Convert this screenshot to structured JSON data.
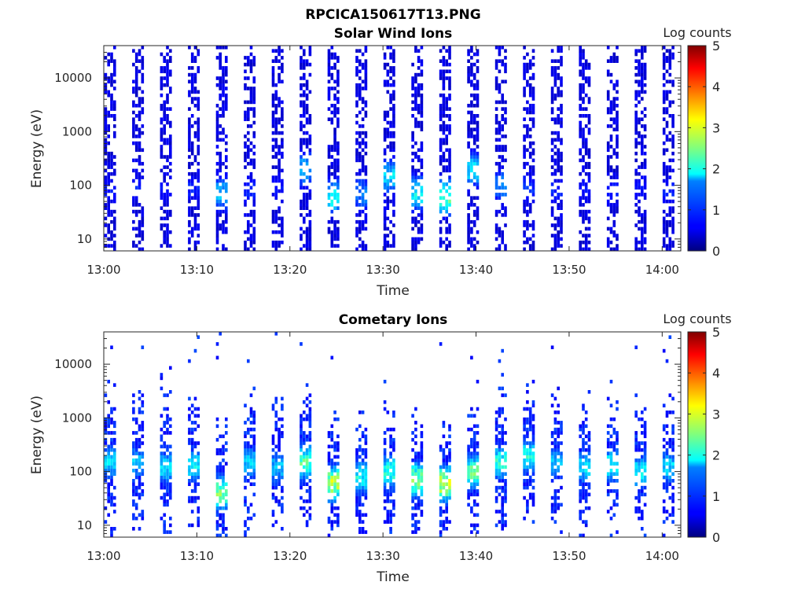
{
  "figure_title": "RPCICA150617T13.PNG",
  "chart_data": [
    {
      "type": "heatmap",
      "title": "Solar Wind Ions",
      "xlabel": "Time",
      "ylabel": "Energy (eV)",
      "x_ticks": [
        "13:00",
        "13:10",
        "13:20",
        "13:30",
        "13:40",
        "13:50",
        "14:00"
      ],
      "x_range": [
        "13:00",
        "14:02"
      ],
      "y_scale": "log",
      "y_ticks": [
        10,
        100,
        1000,
        10000
      ],
      "y_range": [
        6,
        40000
      ],
      "colorbar": {
        "label": "Log counts",
        "range": [
          0,
          5
        ],
        "ticks": [
          0,
          1,
          2,
          3,
          4,
          5
        ],
        "colormap": "jet"
      },
      "sweep_times": [
        "13:00.5",
        "13:03.5",
        "13:06.5",
        "13:09.5",
        "13:12.5",
        "13:15.5",
        "13:18.5",
        "13:21.5",
        "13:24.5",
        "13:27.5",
        "13:30.5",
        "13:33.5",
        "13:36.5",
        "13:39.5",
        "13:42.5",
        "13:45.5",
        "13:48.5",
        "13:51.5",
        "13:54.5",
        "13:57.5",
        "14:00.5"
      ],
      "peak_log_counts": [
        0.8,
        0.9,
        0.8,
        0.9,
        1.8,
        0.9,
        0.8,
        1.8,
        2.2,
        1.5,
        2.0,
        2.2,
        2.6,
        2.0,
        1.5,
        1.0,
        0.9,
        0.8,
        0.9,
        0.8,
        0.9
      ],
      "peak_energy_eV": [
        80,
        90,
        80,
        90,
        70,
        80,
        90,
        200,
        60,
        70,
        150,
        70,
        60,
        200,
        100,
        90,
        80,
        90,
        80,
        90,
        80
      ]
    },
    {
      "type": "heatmap",
      "title": "Cometary Ions",
      "xlabel": "Time",
      "ylabel": "Energy (eV)",
      "x_ticks": [
        "13:00",
        "13:10",
        "13:20",
        "13:30",
        "13:40",
        "13:50",
        "14:00"
      ],
      "x_range": [
        "13:00",
        "14:02"
      ],
      "y_scale": "log",
      "y_ticks": [
        10,
        100,
        1000,
        10000
      ],
      "y_range": [
        6,
        40000
      ],
      "colorbar": {
        "label": "Log counts",
        "range": [
          0,
          5
        ],
        "ticks": [
          0,
          1,
          2,
          3,
          4,
          5
        ],
        "colormap": "jet"
      },
      "sweep_times": [
        "13:00.5",
        "13:03.5",
        "13:06.5",
        "13:09.5",
        "13:12.5",
        "13:15.5",
        "13:18.5",
        "13:21.5",
        "13:24.5",
        "13:27.5",
        "13:30.5",
        "13:33.5",
        "13:36.5",
        "13:39.5",
        "13:42.5",
        "13:45.5",
        "13:48.5",
        "13:51.5",
        "13:54.5",
        "13:57.5",
        "14:00.5"
      ],
      "peak_log_counts": [
        2.0,
        1.8,
        2.0,
        2.2,
        2.9,
        1.9,
        1.8,
        2.7,
        3.2,
        2.2,
        2.4,
        3.0,
        3.4,
        2.7,
        2.4,
        2.3,
        1.8,
        2.0,
        2.3,
        2.2,
        2.0
      ],
      "peak_energy_eV": [
        150,
        150,
        120,
        130,
        40,
        150,
        120,
        150,
        60,
        80,
        100,
        70,
        60,
        100,
        150,
        200,
        150,
        120,
        130,
        100,
        120
      ]
    }
  ]
}
